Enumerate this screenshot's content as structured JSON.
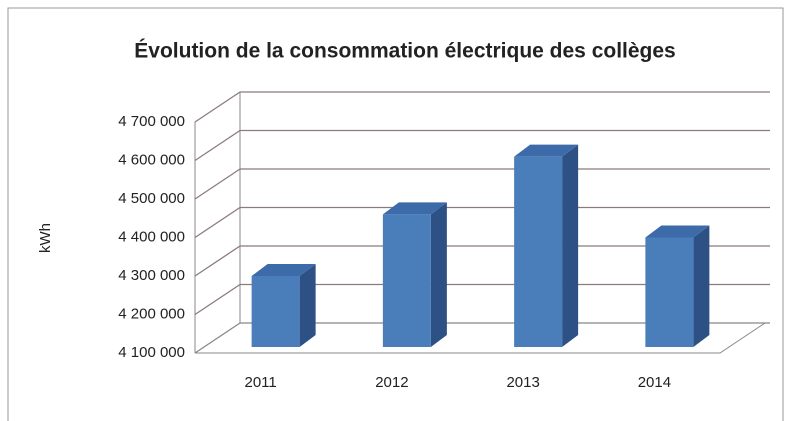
{
  "chart_data": {
    "type": "bar3d",
    "title": "Évolution de la consommation électrique des collèges",
    "y_label": "kWh",
    "categories": [
      "2011",
      "2012",
      "2013",
      "2014"
    ],
    "values": [
      4300000,
      4460000,
      4610000,
      4400000
    ],
    "color": "#4a7ebb",
    "ylim": [
      4100000,
      4700000
    ],
    "yticks": [
      {
        "value": 4100000,
        "label": "4 100 000"
      },
      {
        "value": 4200000,
        "label": "4 200 000"
      },
      {
        "value": 4300000,
        "label": "4 300 000"
      },
      {
        "value": 4400000,
        "label": "4 400 000"
      },
      {
        "value": 4500000,
        "label": "4 500 000"
      },
      {
        "value": 4600000,
        "label": "4 600 000"
      },
      {
        "value": 4700000,
        "label": "4 700 000"
      }
    ],
    "grid": true
  }
}
